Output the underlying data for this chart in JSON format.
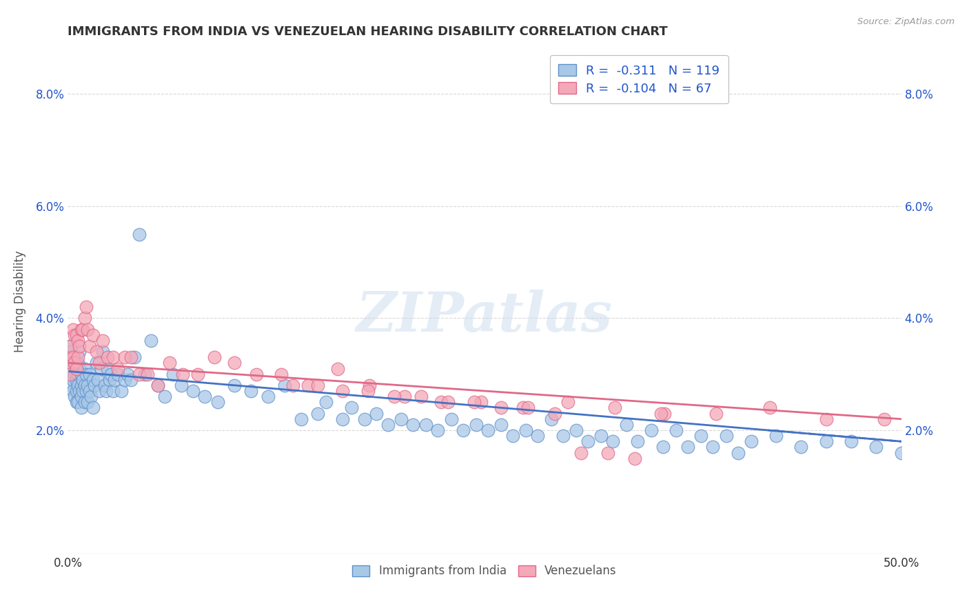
{
  "title": "IMMIGRANTS FROM INDIA VS VENEZUELAN HEARING DISABILITY CORRELATION CHART",
  "source": "Source: ZipAtlas.com",
  "ylabel": "Hearing Disability",
  "xlim": [
    0.0,
    0.5
  ],
  "ylim": [
    -0.002,
    0.088
  ],
  "xtick_labels": [
    "0.0%",
    "",
    "",
    "",
    "",
    "50.0%"
  ],
  "xtick_vals": [
    0.0,
    0.1,
    0.2,
    0.3,
    0.4,
    0.5
  ],
  "ytick_labels": [
    "2.0%",
    "4.0%",
    "6.0%",
    "8.0%"
  ],
  "ytick_vals": [
    0.02,
    0.04,
    0.06,
    0.08
  ],
  "india_color": "#a8c8e8",
  "venezuela_color": "#f4a8b8",
  "india_edge_color": "#6090c8",
  "venezuela_edge_color": "#e06888",
  "trend_india_color": "#4472c4",
  "trend_venezuela_color": "#e06888",
  "legend_text_color": "#2255cc",
  "india_R": "-0.311",
  "india_N": "119",
  "venezuela_R": "-0.104",
  "venezuela_N": "67",
  "watermark": "ZIPatlas",
  "background_color": "#ffffff",
  "grid_color": "#d8d8d8",
  "india_x": [
    0.001,
    0.001,
    0.001,
    0.002,
    0.002,
    0.002,
    0.002,
    0.003,
    0.003,
    0.003,
    0.003,
    0.004,
    0.004,
    0.004,
    0.005,
    0.005,
    0.005,
    0.005,
    0.006,
    0.006,
    0.006,
    0.006,
    0.007,
    0.007,
    0.007,
    0.008,
    0.008,
    0.008,
    0.008,
    0.009,
    0.009,
    0.01,
    0.01,
    0.01,
    0.011,
    0.011,
    0.012,
    0.012,
    0.013,
    0.013,
    0.014,
    0.015,
    0.015,
    0.016,
    0.017,
    0.018,
    0.019,
    0.02,
    0.021,
    0.022,
    0.023,
    0.024,
    0.025,
    0.026,
    0.027,
    0.028,
    0.03,
    0.032,
    0.034,
    0.036,
    0.038,
    0.04,
    0.043,
    0.046,
    0.05,
    0.054,
    0.058,
    0.063,
    0.068,
    0.075,
    0.082,
    0.09,
    0.1,
    0.11,
    0.12,
    0.13,
    0.14,
    0.155,
    0.17,
    0.185,
    0.2,
    0.215,
    0.23,
    0.245,
    0.26,
    0.275,
    0.29,
    0.305,
    0.32,
    0.335,
    0.35,
    0.365,
    0.38,
    0.395,
    0.41,
    0.425,
    0.44,
    0.455,
    0.47,
    0.485,
    0.5,
    0.15,
    0.165,
    0.178,
    0.192,
    0.207,
    0.222,
    0.237,
    0.252,
    0.267,
    0.282,
    0.297,
    0.312,
    0.327,
    0.342,
    0.357,
    0.372,
    0.387,
    0.402
  ],
  "india_y": [
    0.035,
    0.033,
    0.031,
    0.034,
    0.032,
    0.03,
    0.028,
    0.033,
    0.031,
    0.029,
    0.027,
    0.032,
    0.03,
    0.026,
    0.031,
    0.029,
    0.027,
    0.025,
    0.032,
    0.03,
    0.028,
    0.025,
    0.034,
    0.031,
    0.027,
    0.03,
    0.028,
    0.026,
    0.024,
    0.029,
    0.027,
    0.031,
    0.028,
    0.025,
    0.03,
    0.027,
    0.028,
    0.025,
    0.03,
    0.027,
    0.026,
    0.029,
    0.024,
    0.028,
    0.032,
    0.029,
    0.027,
    0.031,
    0.034,
    0.028,
    0.027,
    0.031,
    0.029,
    0.03,
    0.027,
    0.029,
    0.03,
    0.027,
    0.029,
    0.03,
    0.029,
    0.033,
    0.055,
    0.03,
    0.036,
    0.028,
    0.026,
    0.03,
    0.028,
    0.027,
    0.026,
    0.025,
    0.028,
    0.027,
    0.026,
    0.028,
    0.022,
    0.025,
    0.024,
    0.023,
    0.022,
    0.021,
    0.022,
    0.021,
    0.021,
    0.02,
    0.022,
    0.02,
    0.019,
    0.021,
    0.02,
    0.02,
    0.019,
    0.019,
    0.018,
    0.019,
    0.017,
    0.018,
    0.018,
    0.017,
    0.016,
    0.023,
    0.022,
    0.022,
    0.021,
    0.021,
    0.02,
    0.02,
    0.02,
    0.019,
    0.019,
    0.019,
    0.018,
    0.018,
    0.018,
    0.017,
    0.017,
    0.017,
    0.016
  ],
  "venezuela_x": [
    0.001,
    0.001,
    0.002,
    0.002,
    0.003,
    0.003,
    0.004,
    0.004,
    0.005,
    0.005,
    0.006,
    0.006,
    0.007,
    0.008,
    0.009,
    0.01,
    0.011,
    0.012,
    0.013,
    0.015,
    0.017,
    0.019,
    0.021,
    0.024,
    0.027,
    0.03,
    0.034,
    0.038,
    0.043,
    0.048,
    0.054,
    0.061,
    0.069,
    0.078,
    0.088,
    0.1,
    0.113,
    0.128,
    0.144,
    0.162,
    0.181,
    0.202,
    0.224,
    0.248,
    0.273,
    0.3,
    0.328,
    0.358,
    0.389,
    0.421,
    0.455,
    0.49,
    0.135,
    0.15,
    0.165,
    0.18,
    0.196,
    0.212,
    0.228,
    0.244,
    0.26,
    0.276,
    0.292,
    0.308,
    0.324,
    0.34,
    0.356
  ],
  "venezuela_y": [
    0.033,
    0.03,
    0.035,
    0.032,
    0.038,
    0.033,
    0.037,
    0.032,
    0.037,
    0.031,
    0.036,
    0.033,
    0.035,
    0.038,
    0.038,
    0.04,
    0.042,
    0.038,
    0.035,
    0.037,
    0.034,
    0.032,
    0.036,
    0.033,
    0.033,
    0.031,
    0.033,
    0.033,
    0.03,
    0.03,
    0.028,
    0.032,
    0.03,
    0.03,
    0.033,
    0.032,
    0.03,
    0.03,
    0.028,
    0.031,
    0.028,
    0.026,
    0.025,
    0.025,
    0.024,
    0.025,
    0.024,
    0.023,
    0.023,
    0.024,
    0.022,
    0.022,
    0.028,
    0.028,
    0.027,
    0.027,
    0.026,
    0.026,
    0.025,
    0.025,
    0.024,
    0.024,
    0.023,
    0.016,
    0.016,
    0.015,
    0.023
  ],
  "india_trend_x_start": 0.001,
  "india_trend_x_solid_end": 0.5,
  "india_trend_x_dash_end": 0.5,
  "venezuela_trend_x_start": 0.001,
  "venezuela_trend_x_end": 0.5,
  "india_trend_y_start": 0.0305,
  "india_trend_y_solid_end": 0.018,
  "venezuela_trend_y_start": 0.032,
  "venezuela_trend_y_end": 0.022
}
